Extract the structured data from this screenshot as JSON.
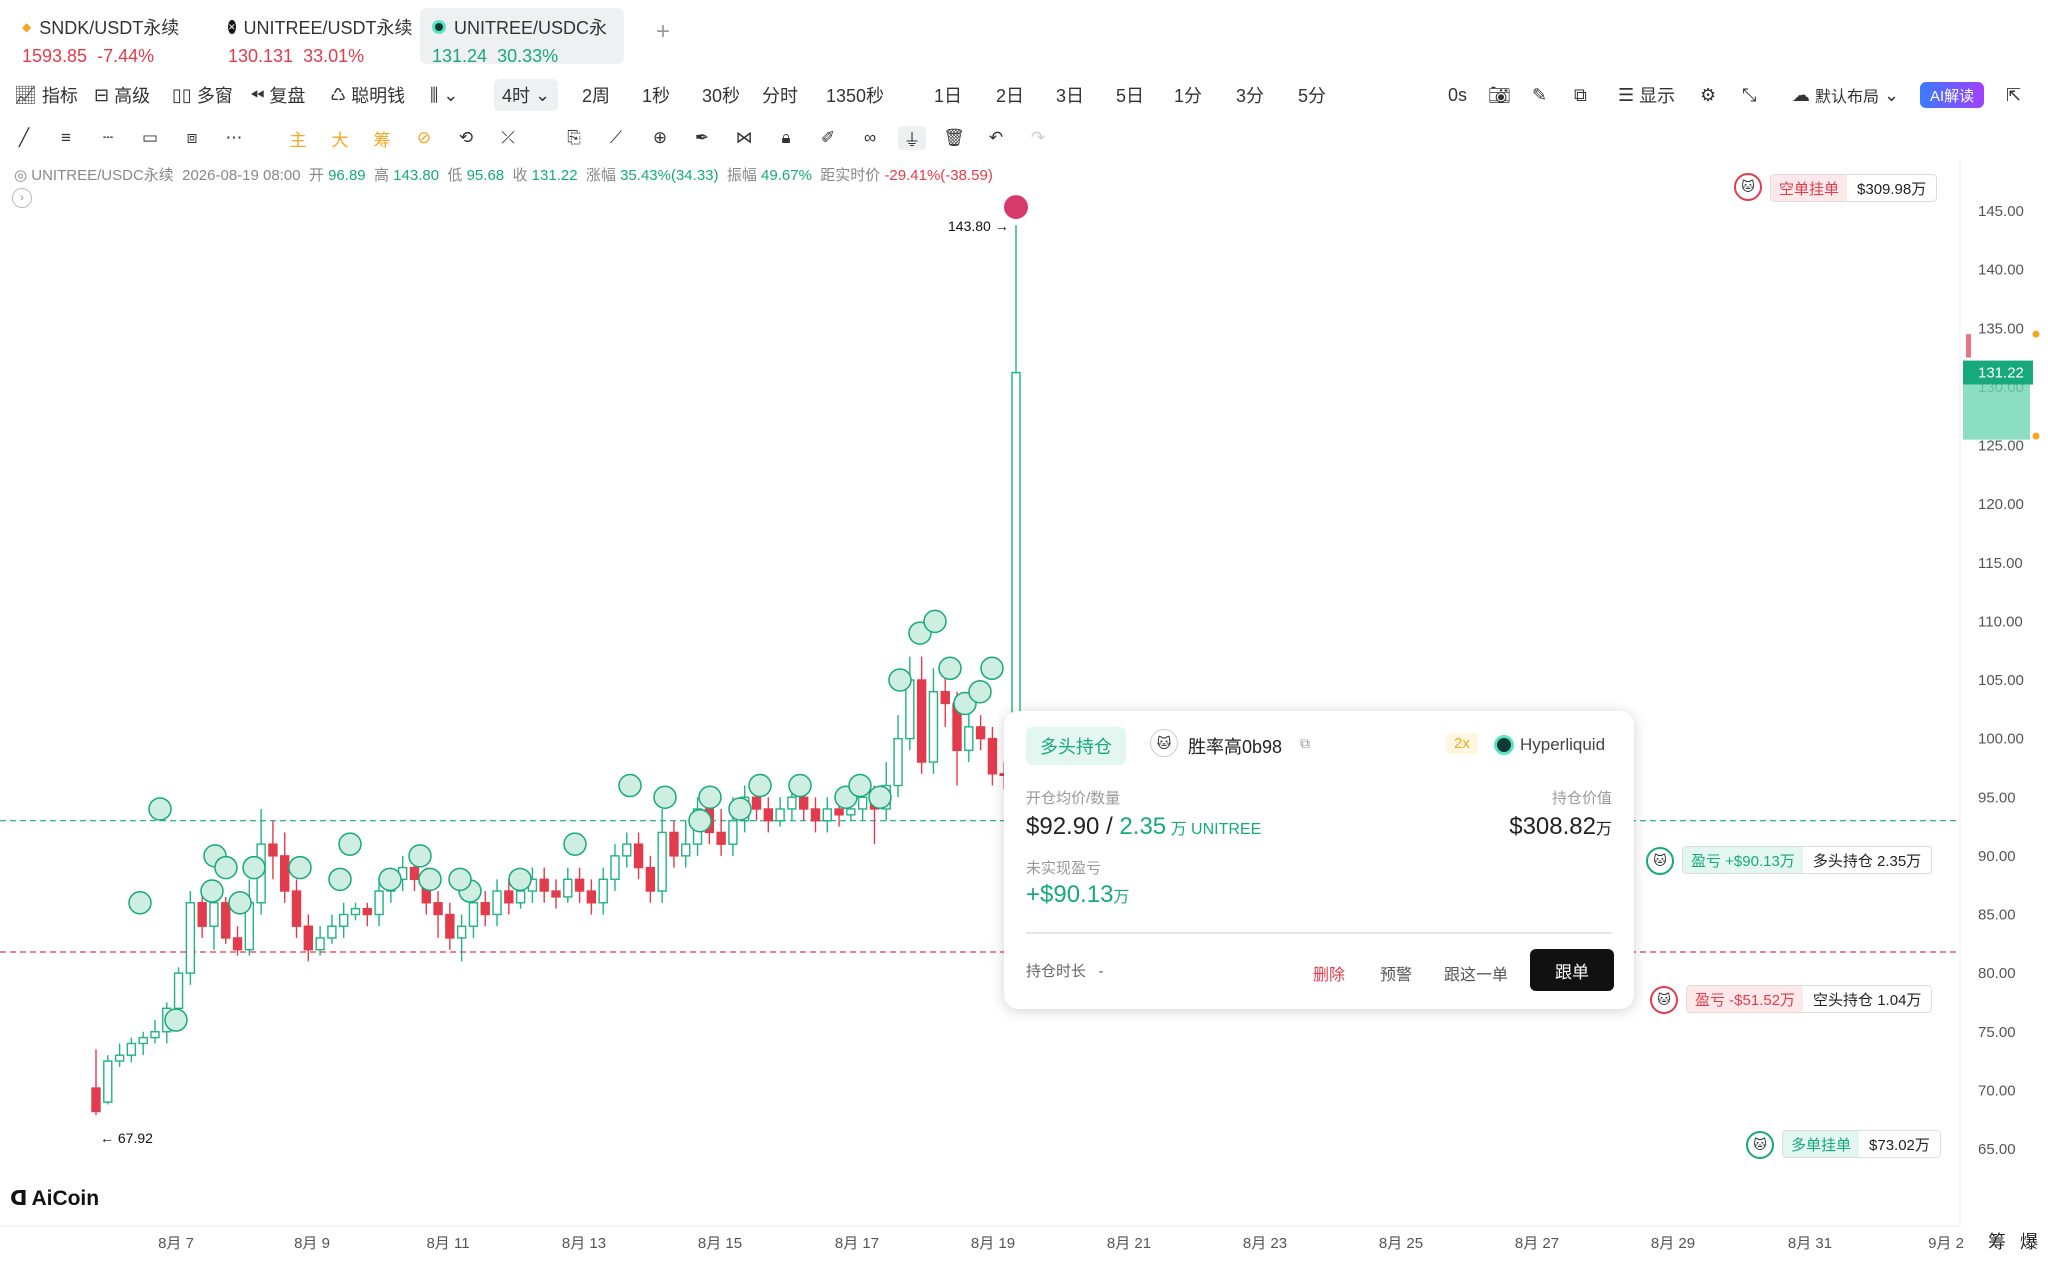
{
  "tabs": [
    {
      "name": "SNDK/USDT永续",
      "price": "1593.85",
      "change": "-7.44%",
      "color": "#e23c4c",
      "icon": "diamond-icon"
    },
    {
      "name": "UNITREE/USDT永续",
      "price": "130.131",
      "change": "33.01%",
      "color": "#e23c4c",
      "icon": "x-circle-icon"
    },
    {
      "name": "UNITREE/USDC永",
      "price": "131.24",
      "change": "30.33%",
      "color": "#17a97c",
      "icon": "hyperliquid-icon",
      "active": true
    }
  ],
  "add_tab": "+",
  "toolbar": {
    "indicator": "指标",
    "advanced": "高级",
    "multi": "多窗",
    "replay": "复盘",
    "smart": "聪明钱",
    "interval_selected": "4时",
    "intervals": [
      "2周",
      "1秒",
      "30秒",
      "分时",
      "1350秒",
      "1日",
      "2日",
      "3日",
      "5日",
      "1分",
      "3分",
      "5分"
    ],
    "countdown": "0s",
    "display": "显示",
    "layout": "默认布局",
    "ai": "AI解读"
  },
  "drawtools": {
    "main": "主",
    "big": "大",
    "chips": "筹"
  },
  "info": {
    "symbol": "UNITREE/USDC永续",
    "time": "2026-08-19 08:00",
    "open_label": "开",
    "open": "96.89",
    "high_label": "高",
    "high": "143.80",
    "low_label": "低",
    "low": "95.68",
    "close_label": "收",
    "close": "131.22",
    "change_label": "涨幅",
    "change": "35.43%(34.33)",
    "amp_label": "振幅",
    "amp": "49.67%",
    "dist_label": "距实时价",
    "dist": "-29.41%(-38.59)"
  },
  "chart_data": {
    "type": "candlestick",
    "y_ticks": [
      "145.00",
      "140.00",
      "135.00",
      "130.00",
      "125.00",
      "120.00",
      "115.00",
      "110.00",
      "105.00",
      "100.00",
      "95.00",
      "90.00",
      "85.00",
      "80.00",
      "75.00",
      "70.00",
      "65.00"
    ],
    "x_ticks": [
      "8月 7",
      "8月 9",
      "8月 11",
      "8月 13",
      "8月 15",
      "8月 17",
      "8月 19",
      "8月 21",
      "8月 23",
      "8月 25",
      "8月 27",
      "8月 29",
      "8月 31",
      "9月 2"
    ],
    "ylim": [
      65,
      145
    ],
    "last_price": "131.22",
    "high_label": "143.80 →",
    "low_label": "← 67.92",
    "long_line": 93.0,
    "short_line": 81.8
  },
  "positions": [
    {
      "kind": "空单挂单",
      "value": "$309.98万",
      "color": "#e23c4c",
      "price": 143.9
    },
    {
      "kind": "盈亏 +$90.13万",
      "value": "多头持仓 2.35万",
      "color": "#17a97c",
      "price": 93.0
    },
    {
      "kind": "盈亏 -$51.52万",
      "value": "空头持仓 1.04万",
      "color": "#e23c4c",
      "price": 81.8
    },
    {
      "kind": "多单挂单",
      "value": "$73.02万",
      "color": "#17a97c",
      "price": 70.0
    }
  ],
  "popup": {
    "tag": "多头持仓",
    "trader": "胜率高0b98",
    "lev": "2x",
    "exchange": "Hyperliquid",
    "avg_label": "开仓均价/数量",
    "avg": "$92.90",
    "qty": "2.35",
    "qty_unit": "万 UNITREE",
    "value_label": "持仓价值",
    "value": "$308.82",
    "value_unit": "万",
    "pnl_label": "未实现盈亏",
    "pnl": "+$90.13",
    "pnl_unit": "万",
    "dur_label": "持仓时长",
    "dur": "-",
    "delete": "删除",
    "alert": "预警",
    "follow_one": "跟这一单",
    "follow": "跟单"
  },
  "brand": "AiCoin",
  "corner": {
    "a": "筹",
    "b": "爆"
  }
}
